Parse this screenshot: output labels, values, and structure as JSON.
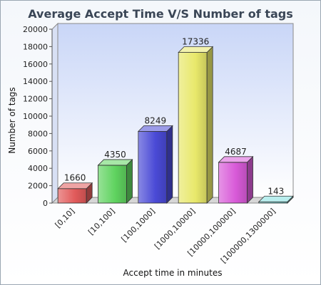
{
  "chart_data": {
    "type": "bar",
    "title": "Average Accept Time V/S Number of tags",
    "xlabel": "Accept time in minutes",
    "ylabel": "Number of tags",
    "categories": [
      "[0,10]",
      "[10,100]",
      "[100,1000]",
      "[1000,10000]",
      "[10000,100000]",
      "[100000,1300000]"
    ],
    "values": [
      1660,
      4350,
      8249,
      17336,
      4687,
      143
    ],
    "data_labels": [
      "1660",
      "4350",
      "8249",
      "17336",
      "4687",
      "143"
    ],
    "ylim": [
      0,
      20000
    ],
    "yticks": [
      0,
      2000,
      4000,
      6000,
      8000,
      10000,
      12000,
      14000,
      16000,
      18000,
      20000
    ],
    "ytick_labels": [
      "0",
      "2000",
      "4000",
      "6000",
      "8000",
      "10000",
      "12000",
      "14000",
      "16000",
      "18000",
      "20000"
    ],
    "grid": false,
    "legend": "none",
    "colors": {
      "bars": [
        "#e15a5a",
        "#5fd35f",
        "#4a4ad6",
        "#e8e86a",
        "#d85ad8",
        "#7fe0e0"
      ],
      "plot_background_top": "#c9d6f7",
      "plot_background_bottom": "#ffffff",
      "title": "#3a4656"
    }
  }
}
